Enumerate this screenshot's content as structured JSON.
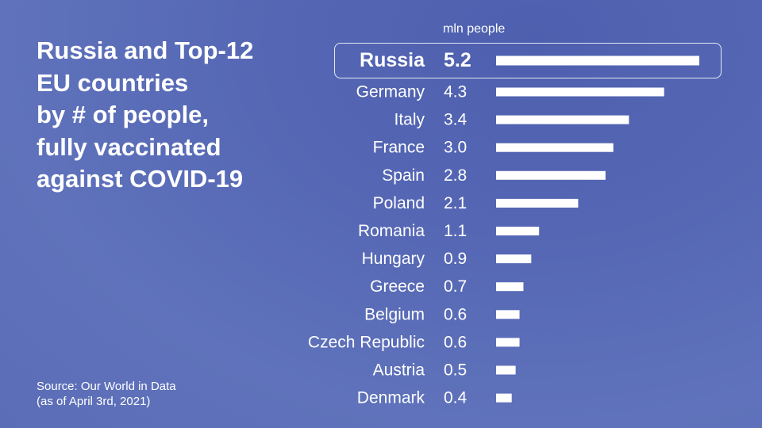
{
  "title_lines": [
    "Russia and Top-12",
    "EU countries",
    "by # of people,",
    "fully vaccinated",
    "against COVID-19"
  ],
  "source_lines": [
    "Source: Our World in Data",
    "(as of April 3rd, 2021)"
  ],
  "chart_data": {
    "type": "bar",
    "orientation": "horizontal",
    "title": "Russia and Top-12 EU countries by # of people, fully vaccinated against COVID-19",
    "unit_label": "mln people",
    "categories": [
      "Russia",
      "Germany",
      "Italy",
      "France",
      "Spain",
      "Poland",
      "Romania",
      "Hungary",
      "Greece",
      "Belgium",
      "Czech Republic",
      "Austria",
      "Denmark"
    ],
    "values": [
      5.2,
      4.3,
      3.4,
      3.0,
      2.8,
      2.1,
      1.1,
      0.9,
      0.7,
      0.6,
      0.6,
      0.5,
      0.4
    ],
    "value_labels": [
      "5.2",
      "4.3",
      "3.4",
      "3.0",
      "2.8",
      "2.1",
      "1.1",
      "0.9",
      "0.7",
      "0.6",
      "0.6",
      "0.5",
      "0.4"
    ],
    "highlighted": "Russia",
    "xlim": [
      0,
      5.2
    ],
    "grid": false,
    "legend": "none",
    "bar_color": "#ffffff",
    "highlight_border_color": "#ffffff"
  }
}
